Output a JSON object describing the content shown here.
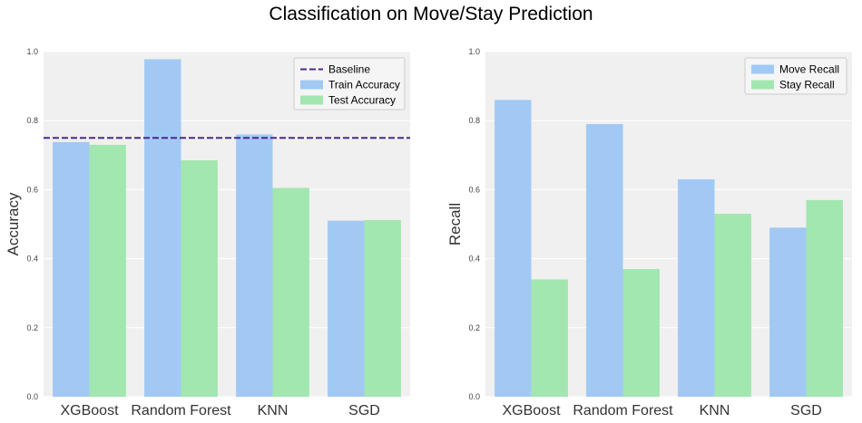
{
  "suptitle": "Classification on Move/Stay Prediction",
  "chart_data": [
    {
      "type": "bar",
      "title": "",
      "xlabel": "",
      "ylabel": "Accuracy",
      "ylim": [
        0,
        1.0
      ],
      "yticks": [
        "0.0",
        "0.2",
        "0.4",
        "0.6",
        "0.8",
        "1.0"
      ],
      "categories": [
        "XGBoost",
        "Random Forest",
        "KNN",
        "SGD"
      ],
      "series": [
        {
          "name": "Train Accuracy",
          "color": "#a1c9f4",
          "values": [
            0.738,
            0.978,
            0.76,
            0.51
          ]
        },
        {
          "name": "Test Accuracy",
          "color": "#a2e6b0",
          "values": [
            0.73,
            0.685,
            0.605,
            0.512
          ]
        }
      ],
      "baseline": {
        "name": "Baseline",
        "value": 0.75,
        "color": "#4b2991"
      },
      "grid": true,
      "legend": "top-right"
    },
    {
      "type": "bar",
      "title": "",
      "xlabel": "",
      "ylabel": "Recall",
      "ylim": [
        0,
        1.0
      ],
      "yticks": [
        "0.0",
        "0.2",
        "0.4",
        "0.6",
        "0.8",
        "1.0"
      ],
      "categories": [
        "XGBoost",
        "Random Forest",
        "KNN",
        "SGD"
      ],
      "series": [
        {
          "name": "Move Recall",
          "color": "#a1c9f4",
          "values": [
            0.86,
            0.79,
            0.63,
            0.49
          ]
        },
        {
          "name": "Stay Recall",
          "color": "#a2e6b0",
          "values": [
            0.34,
            0.37,
            0.53,
            0.57
          ]
        }
      ],
      "grid": true,
      "legend": "top-right"
    }
  ]
}
